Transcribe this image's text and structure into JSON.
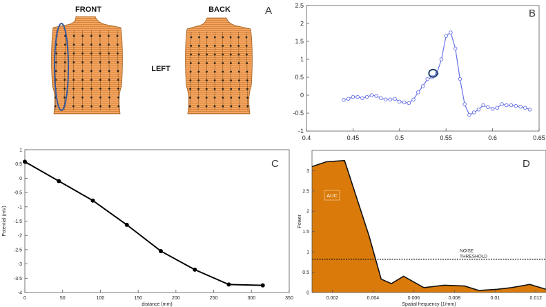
{
  "panel_a": {
    "letter": "A",
    "front_label": "FRONT",
    "back_label": "BACK",
    "side_label": "LEFT",
    "torso_color": "#F4A460",
    "electrode_color": "#222222",
    "highlight_color": "#3A5A9C"
  },
  "chart_data": [
    {
      "panel": "B",
      "type": "line",
      "title": "",
      "xlabel": "",
      "ylabel": "",
      "xlim": [
        0.4,
        0.65
      ],
      "ylim": [
        -1,
        2.5
      ],
      "xticks": [
        0.4,
        0.45,
        0.5,
        0.55,
        0.6,
        0.65
      ],
      "xtick_labels": [
        "0.4",
        "0.45",
        "0.5",
        "0.55",
        "0.6",
        "0.65"
      ],
      "yticks": [
        -1,
        -0.5,
        0,
        0.5,
        1,
        1.5,
        2,
        2.5
      ],
      "ytick_labels": [
        "-1",
        "-0.5",
        "0",
        "0.5",
        "1",
        "1.5",
        "2",
        "2.5"
      ],
      "grid": false,
      "color": "#6670E8",
      "marker": "circle",
      "highlight_point": {
        "x": 0.5375,
        "y": 0.65,
        "color": "#1F3F6E"
      },
      "series": [
        {
          "x": [
            0.44,
            0.445,
            0.45,
            0.455,
            0.46,
            0.465,
            0.47,
            0.475,
            0.48,
            0.485,
            0.49,
            0.495,
            0.5,
            0.505,
            0.51,
            0.515,
            0.52,
            0.525,
            0.53,
            0.535,
            0.54,
            0.545,
            0.55,
            0.555,
            0.56,
            0.565,
            0.57,
            0.575,
            0.58,
            0.585,
            0.59,
            0.595,
            0.6,
            0.605,
            0.61,
            0.615,
            0.62,
            0.625,
            0.63,
            0.635,
            0.64
          ],
          "y": [
            -0.13,
            -0.1,
            -0.05,
            -0.05,
            -0.08,
            -0.05,
            0.0,
            -0.02,
            -0.08,
            -0.12,
            -0.12,
            -0.1,
            -0.18,
            -0.2,
            -0.22,
            -0.12,
            0.08,
            0.25,
            0.45,
            0.5,
            0.6,
            1.0,
            1.65,
            1.75,
            1.3,
            0.45,
            -0.25,
            -0.55,
            -0.48,
            -0.4,
            -0.28,
            -0.33,
            -0.38,
            -0.35,
            -0.25,
            -0.28,
            -0.28,
            -0.3,
            -0.32,
            -0.35,
            -0.4
          ]
        }
      ]
    },
    {
      "panel": "C",
      "type": "line",
      "title": "",
      "xlabel": "distance (mm)",
      "ylabel": "Potential (mV)",
      "xlim": [
        0,
        350
      ],
      "ylim": [
        -4,
        1
      ],
      "xticks": [
        0,
        50,
        100,
        150,
        200,
        250,
        300,
        350
      ],
      "xtick_labels": [
        "0",
        "50",
        "100",
        "150",
        "200",
        "250",
        "300",
        "350"
      ],
      "yticks": [
        -4,
        -3.5,
        -3,
        -2.5,
        -2,
        -1.5,
        -1,
        -0.5,
        0,
        0.5,
        1
      ],
      "ytick_labels": [
        "-4",
        "-3.5",
        "-3",
        "-2.5",
        "-2",
        "-1.5",
        "-1",
        "-0.5",
        "0",
        "0.5",
        "1"
      ],
      "grid": false,
      "color": "#000000",
      "marker": "dot",
      "series": [
        {
          "x": [
            0,
            45,
            90,
            135,
            180,
            225,
            270,
            315
          ],
          "y": [
            0.58,
            -0.1,
            -0.78,
            -1.63,
            -2.55,
            -3.2,
            -3.72,
            -3.75
          ]
        }
      ]
    },
    {
      "panel": "D",
      "type": "area",
      "title": "",
      "xlabel": "Spatial frequency (1/mm)",
      "ylabel": "Power",
      "xlim": [
        0.001,
        0.0125
      ],
      "ylim": [
        0,
        3.5
      ],
      "xticks": [
        0.002,
        0.004,
        0.006,
        0.008,
        0.01,
        0.012
      ],
      "xtick_labels": [
        "0.002",
        "0.004",
        "0.006",
        "0.008",
        "0.01",
        "0.012"
      ],
      "yticks": [
        0,
        0.5,
        1,
        1.5,
        2,
        2.5,
        3
      ],
      "ytick_labels": [
        "0",
        "0.5",
        "1",
        "1.5",
        "2",
        "2.5",
        "3"
      ],
      "grid": false,
      "fill_color": "#D97A0A",
      "area_label": "AUC",
      "threshold": {
        "value": 0.82,
        "label_line1": "NOISE",
        "label_line2": "THRESHOLD"
      },
      "series": [
        {
          "x": [
            0.001,
            0.0017,
            0.0026,
            0.0038,
            0.0044,
            0.0049,
            0.0055,
            0.0065,
            0.0075,
            0.0085,
            0.0092,
            0.0101,
            0.0108,
            0.0117,
            0.0125
          ],
          "y": [
            3.1,
            3.22,
            3.25,
            1.4,
            0.33,
            0.22,
            0.4,
            0.12,
            0.18,
            0.16,
            0.05,
            0.08,
            0.12,
            0.2,
            0.08
          ]
        }
      ]
    }
  ]
}
